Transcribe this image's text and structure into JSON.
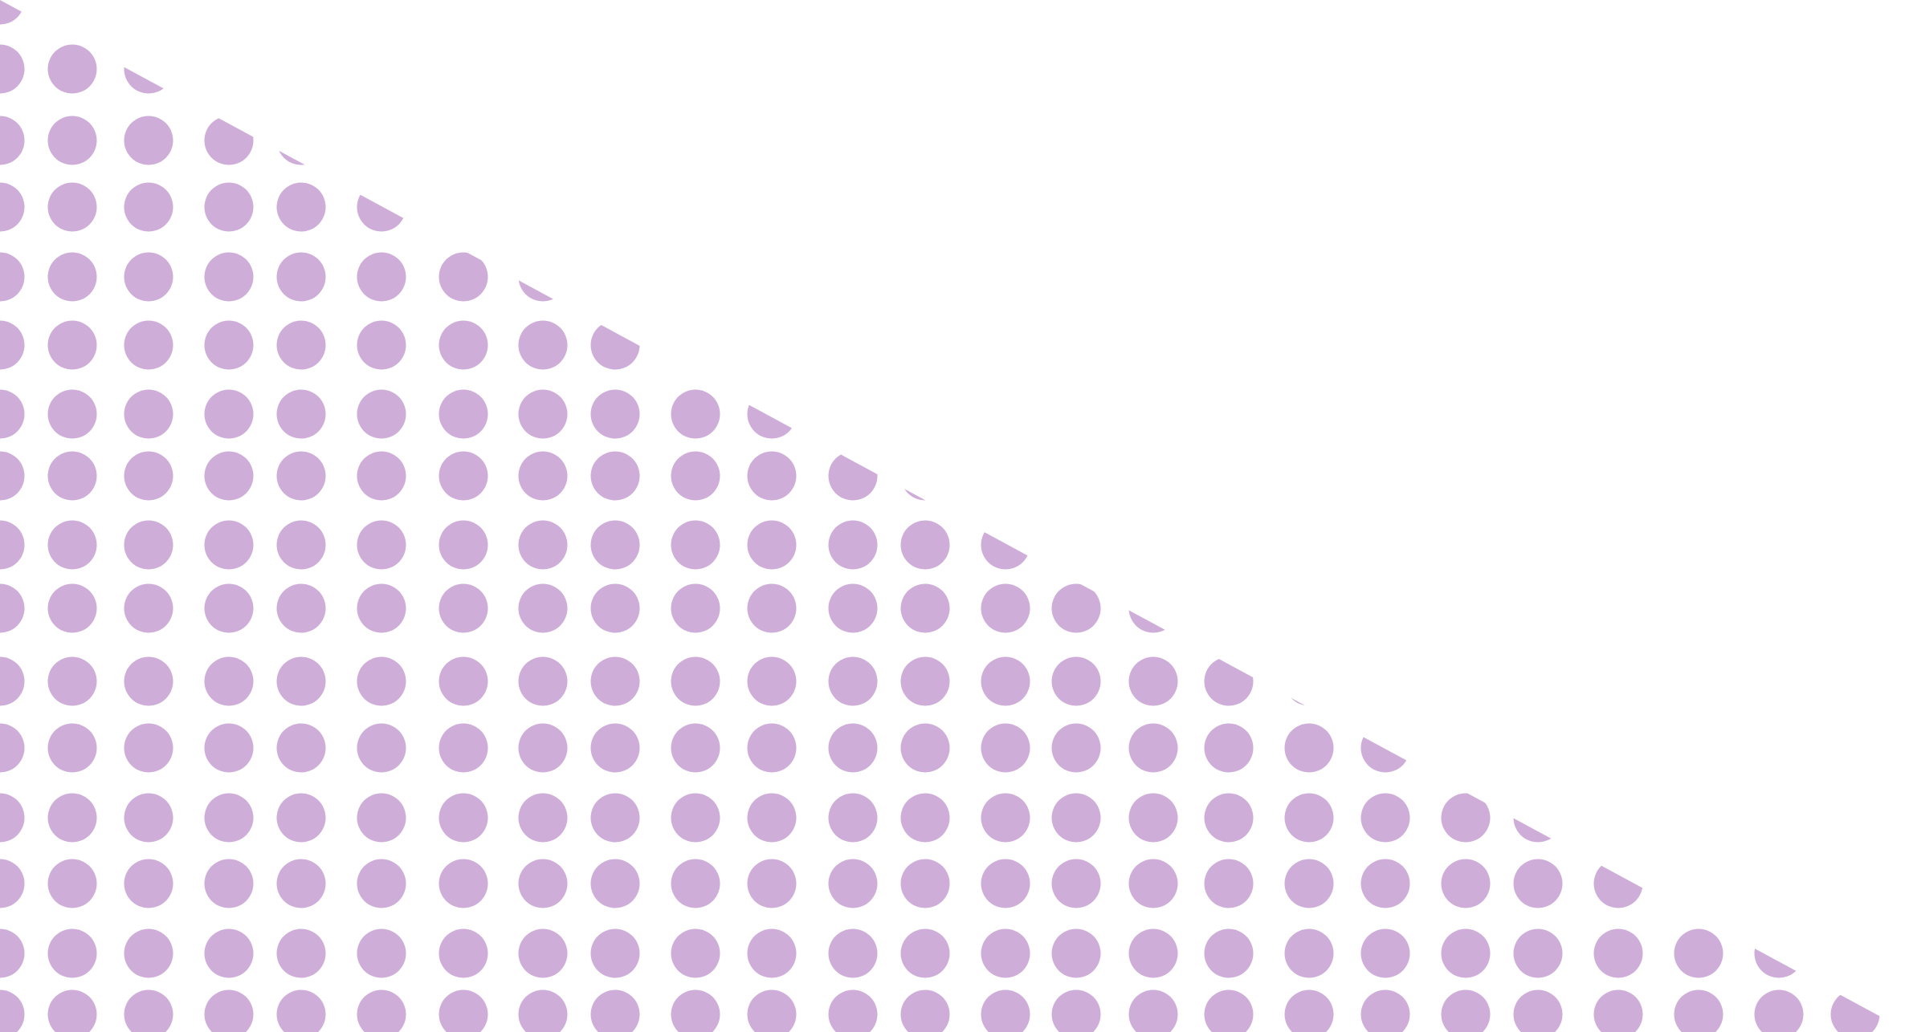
{
  "pattern": {
    "name": "triangular-dot-pattern",
    "dot_color": "#ceaed9",
    "background_color": "#ffffff"
  }
}
